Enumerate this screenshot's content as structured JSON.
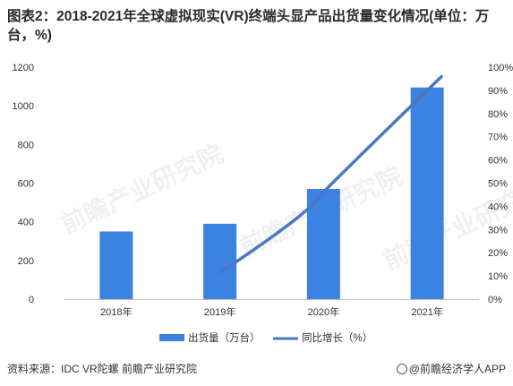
{
  "title": "图表2：2018-2021年全球虚拟现实(VR)终端头显产品出货量变化情况(单位：万台，%)",
  "source": "资料来源：IDC VR陀螺 前瞻产业研究院",
  "brand": "@前瞻经济学人APP",
  "watermark": "前瞻产业研究院",
  "chart_data": {
    "type": "bar+line",
    "categories": [
      "2018年",
      "2019年",
      "2020年",
      "2021年"
    ],
    "series": [
      {
        "name": "出货量（万台）",
        "type": "bar",
        "axis": "left",
        "color": "#3c82e0",
        "values": [
          350,
          390,
          570,
          1095
        ]
      },
      {
        "name": "同比增长（%）",
        "type": "line",
        "axis": "right",
        "color": "#4a78c2",
        "values": [
          null,
          11.4,
          46.2,
          92.1
        ]
      }
    ],
    "y_left": {
      "min": 0,
      "max": 1200,
      "step": 200,
      "ticks": [
        "0",
        "200",
        "400",
        "600",
        "800",
        "1000",
        "1200"
      ]
    },
    "y_right": {
      "min": 0,
      "max": 100,
      "step": 10,
      "ticks": [
        "0%",
        "10%",
        "20%",
        "30%",
        "40%",
        "50%",
        "60%",
        "70%",
        "80%",
        "90%",
        "100%"
      ]
    },
    "grid": false,
    "legend": "bottom"
  }
}
